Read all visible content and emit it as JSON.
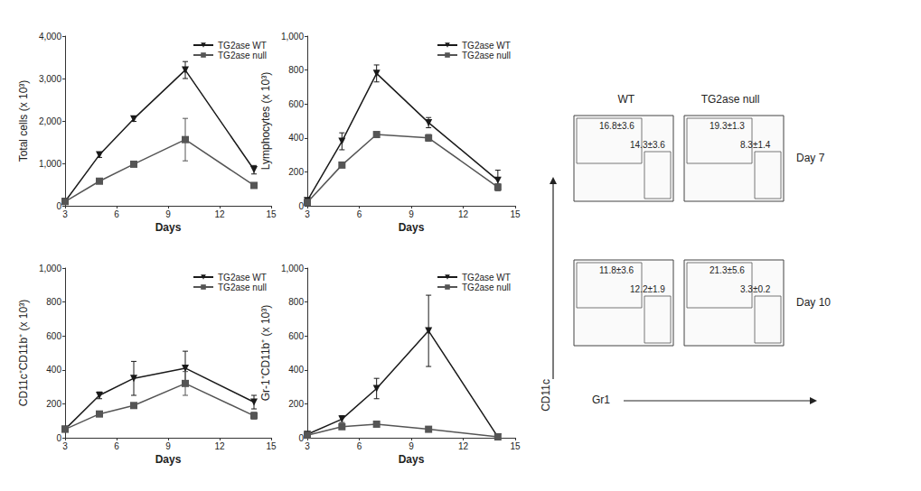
{
  "chart_data": [
    {
      "type": "line",
      "y_label": "Total cells (x 10³)",
      "x_label": "Days",
      "x": [
        3,
        5,
        7,
        10,
        14
      ],
      "xlim": [
        3,
        15
      ],
      "xticks": [
        3,
        6,
        9,
        12,
        15
      ],
      "ylim": [
        0,
        4000
      ],
      "yticks": [
        0,
        1000,
        2000,
        3000,
        4000
      ],
      "legend": "top-right",
      "series": [
        {
          "name": "TG2ase WT",
          "color": "#1a1a1a",
          "marker": "triangle-down",
          "values": [
            100,
            1200,
            2050,
            3200,
            850
          ],
          "errors": [
            20,
            60,
            60,
            200,
            100
          ]
        },
        {
          "name": "TG2ase null",
          "color": "#555555",
          "marker": "square",
          "values": [
            100,
            580,
            980,
            1560,
            480
          ],
          "errors": [
            20,
            40,
            50,
            500,
            60
          ]
        }
      ]
    },
    {
      "type": "line",
      "y_label": "Lymphocytes (x 10³)",
      "x_label": "Days",
      "x": [
        3,
        5,
        7,
        10,
        14
      ],
      "xlim": [
        3,
        15
      ],
      "xticks": [
        3,
        6,
        9,
        12,
        15
      ],
      "ylim": [
        0,
        1000
      ],
      "yticks": [
        0,
        200,
        400,
        600,
        800,
        1000
      ],
      "legend": "top-right",
      "series": [
        {
          "name": "TG2ase WT",
          "color": "#1a1a1a",
          "marker": "triangle-down",
          "values": [
            30,
            380,
            780,
            490,
            150
          ],
          "errors": [
            10,
            50,
            50,
            30,
            60
          ]
        },
        {
          "name": "TG2ase null",
          "color": "#555555",
          "marker": "square",
          "values": [
            20,
            240,
            420,
            400,
            110
          ],
          "errors": [
            10,
            15,
            15,
            20,
            20
          ]
        }
      ]
    },
    {
      "type": "line",
      "y_label": "CD11c⁺CD11b⁺ (x 10³)",
      "x_label": "Days",
      "x": [
        3,
        5,
        7,
        10,
        14
      ],
      "xlim": [
        3,
        15
      ],
      "xticks": [
        3,
        6,
        9,
        12,
        15
      ],
      "ylim": [
        0,
        1000
      ],
      "yticks": [
        0,
        200,
        400,
        600,
        800,
        1000
      ],
      "legend": "top-right",
      "series": [
        {
          "name": "TG2ase WT",
          "color": "#1a1a1a",
          "marker": "triangle-down",
          "values": [
            50,
            250,
            350,
            410,
            210
          ],
          "errors": [
            10,
            20,
            100,
            100,
            40
          ]
        },
        {
          "name": "TG2ase null",
          "color": "#555555",
          "marker": "square",
          "values": [
            50,
            140,
            190,
            320,
            130
          ],
          "errors": [
            10,
            15,
            15,
            70,
            20
          ]
        }
      ]
    },
    {
      "type": "line",
      "y_label": "Gr-1⁺CD11b⁺ (x 10³)",
      "x_label": "Days",
      "x": [
        3,
        5,
        7,
        10,
        14
      ],
      "xlim": [
        3,
        15
      ],
      "xticks": [
        3,
        6,
        9,
        12,
        15
      ],
      "ylim": [
        0,
        1000
      ],
      "yticks": [
        0,
        200,
        400,
        600,
        800,
        1000
      ],
      "legend": "top-right",
      "series": [
        {
          "name": "TG2ase WT",
          "color": "#1a1a1a",
          "marker": "triangle-down",
          "values": [
            20,
            110,
            290,
            630,
            5
          ],
          "errors": [
            5,
            20,
            60,
            210,
            5
          ]
        },
        {
          "name": "TG2ase null",
          "color": "#555555",
          "marker": "square",
          "values": [
            15,
            65,
            80,
            50,
            5
          ],
          "errors": [
            5,
            10,
            10,
            10,
            5
          ]
        }
      ]
    }
  ],
  "flow_cytometry": {
    "x_label": "Gr1",
    "y_label": "CD11c",
    "columns": [
      "WT",
      "TG2ase null"
    ],
    "rows": [
      {
        "label": "Day 7",
        "panels": [
          {
            "cd11c_gate": "16.8±3.6",
            "gr1_gate": "14.3±3.6"
          },
          {
            "cd11c_gate": "19.3±1.3",
            "gr1_gate": "8.3±1.4"
          }
        ]
      },
      {
        "label": "Day 10",
        "panels": [
          {
            "cd11c_gate": "11.8±3.6",
            "gr1_gate": "12.2±1.9"
          },
          {
            "cd11c_gate": "21.3±5.6",
            "gr1_gate": "3.3±0.2"
          }
        ]
      }
    ]
  }
}
